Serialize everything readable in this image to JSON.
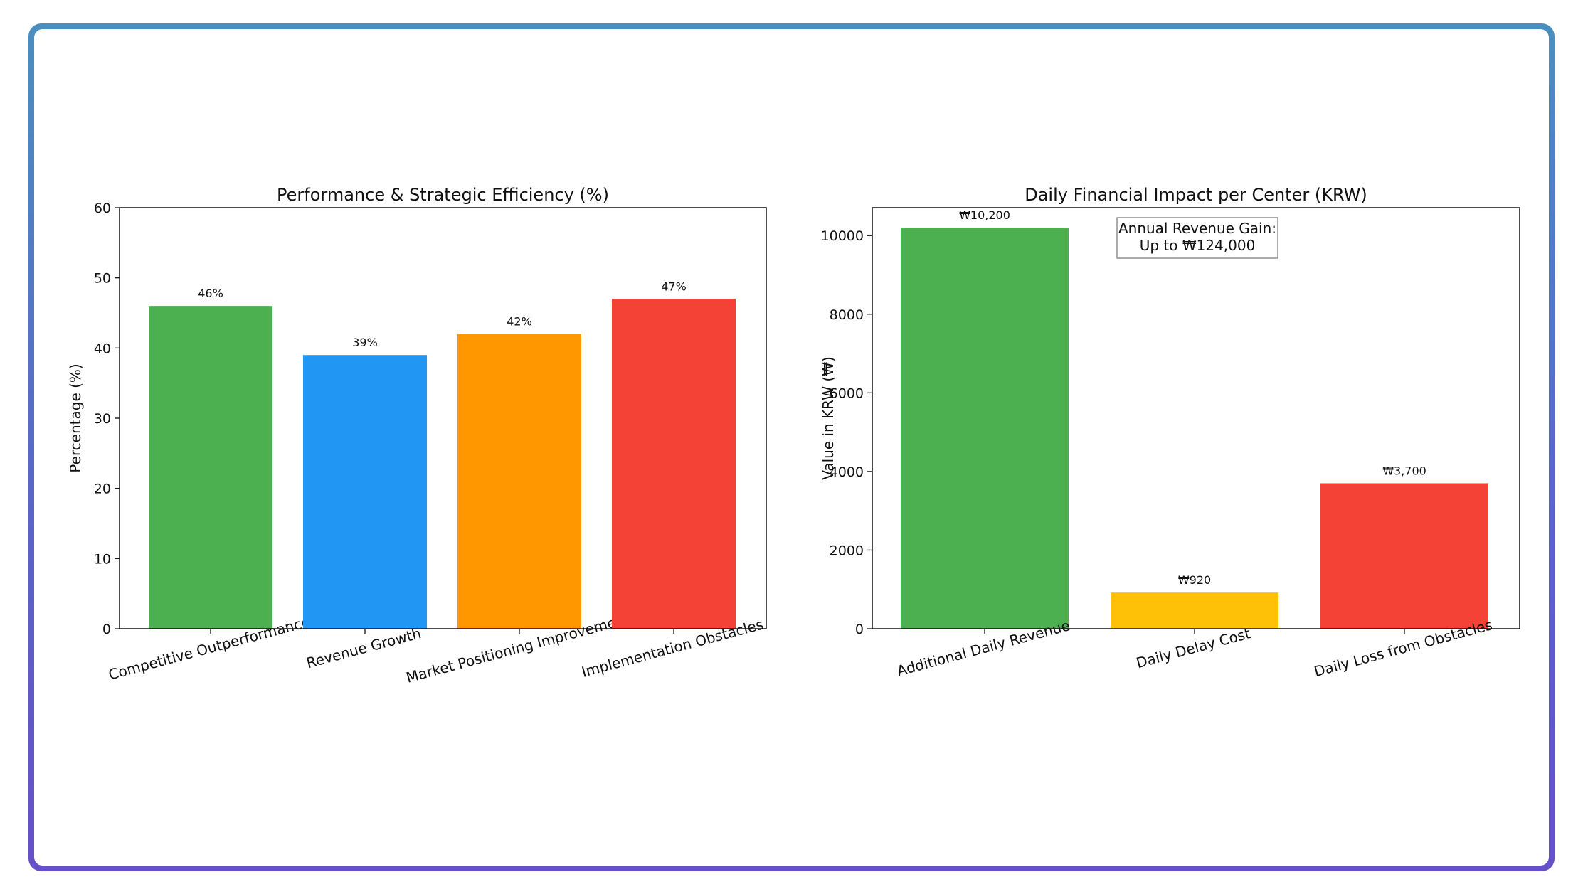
{
  "chart_data": [
    {
      "type": "bar",
      "title": "Performance & Strategic Efficiency (%)",
      "xlabel": "",
      "ylabel": "Percentage (%)",
      "ylim": [
        0,
        60
      ],
      "yticks": [
        0,
        10,
        20,
        30,
        40,
        50,
        60
      ],
      "categories": [
        "Competitive Outperformance",
        "Revenue Growth",
        "Market Positioning Improvement",
        "Implementation Obstacles"
      ],
      "values": [
        46,
        39,
        42,
        47
      ],
      "labels": [
        "46%",
        "39%",
        "42%",
        "47%"
      ],
      "colors": [
        "#4caf50",
        "#2196f3",
        "#ff9800",
        "#f44336"
      ]
    },
    {
      "type": "bar",
      "title": "Daily Financial Impact per Center (KRW)",
      "xlabel": "",
      "ylabel": "Value in KRW (₩)",
      "ylim": [
        0,
        10710
      ],
      "yticks": [
        0,
        2000,
        4000,
        6000,
        8000,
        10000
      ],
      "categories": [
        "Additional Daily Revenue",
        "Daily Delay Cost",
        "Daily Loss from Obstacles"
      ],
      "values": [
        10200,
        920,
        3700
      ],
      "labels": [
        "₩10,200",
        "₩920",
        "₩3,700"
      ],
      "colors": [
        "#4caf50",
        "#ffc107",
        "#f44336"
      ],
      "annotation": [
        "Annual Revenue Gain:",
        "Up to ₩124,000"
      ]
    }
  ]
}
